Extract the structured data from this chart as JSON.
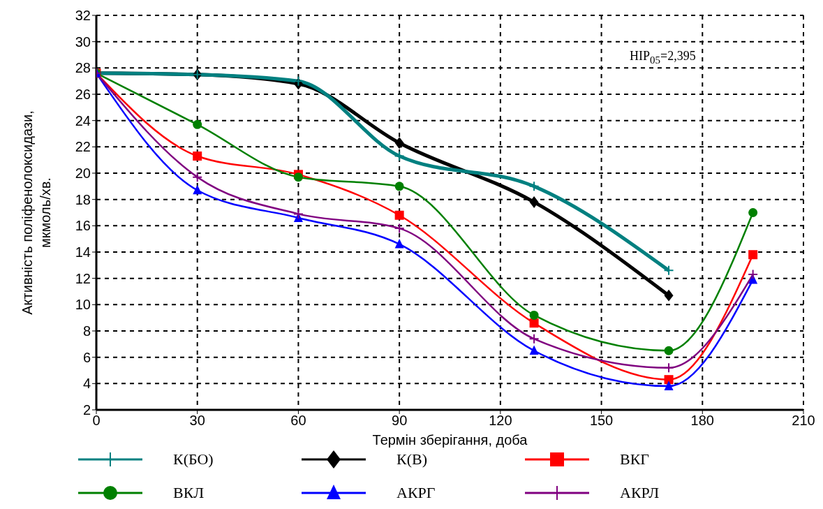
{
  "chart_data": {
    "type": "line",
    "xlabel": "Термін зберігання, доба",
    "ylabel": "Активність поліфенолоксидази,\nмкмоль/хв.",
    "x": [
      0,
      30,
      60,
      90,
      130,
      170,
      195
    ],
    "xlim": [
      0,
      210
    ],
    "xticks": [
      0,
      30,
      60,
      90,
      120,
      150,
      180,
      210
    ],
    "ylim": [
      2,
      32
    ],
    "yticks": [
      2,
      4,
      6,
      8,
      10,
      12,
      14,
      16,
      18,
      20,
      22,
      24,
      26,
      28,
      30,
      32
    ],
    "grid": true,
    "legend": "bottom",
    "line_style": "solid",
    "annotations": [
      "НІР$_{05}$=2,395"
    ],
    "series": [
      {
        "name": "К(БО)",
        "color": "#008080",
        "marker": "cross",
        "values": [
          27.6,
          27.5,
          27.0,
          21.3,
          19.0,
          12.6,
          null
        ]
      },
      {
        "name": "К(В)",
        "color": "#000000",
        "marker": "diamond",
        "values": [
          27.6,
          27.5,
          26.8,
          22.3,
          17.8,
          10.7,
          null
        ]
      },
      {
        "name": "ВКГ",
        "color": "#ff0000",
        "marker": "square",
        "values": [
          27.6,
          21.3,
          19.9,
          16.8,
          8.6,
          4.3,
          13.8
        ]
      },
      {
        "name": "ВКЛ",
        "color": "#008000",
        "marker": "circle",
        "values": [
          27.6,
          23.7,
          19.7,
          19.0,
          9.2,
          6.5,
          17.0
        ]
      },
      {
        "name": "АКРГ",
        "color": "#0000ff",
        "marker": "triangle",
        "values": [
          27.6,
          18.7,
          16.6,
          14.6,
          6.5,
          3.8,
          11.9
        ]
      },
      {
        "name": "АКРЛ",
        "color": "#800080",
        "marker": "cross",
        "values": [
          27.6,
          19.7,
          16.9,
          15.8,
          7.4,
          5.2,
          12.3
        ]
      }
    ]
  }
}
